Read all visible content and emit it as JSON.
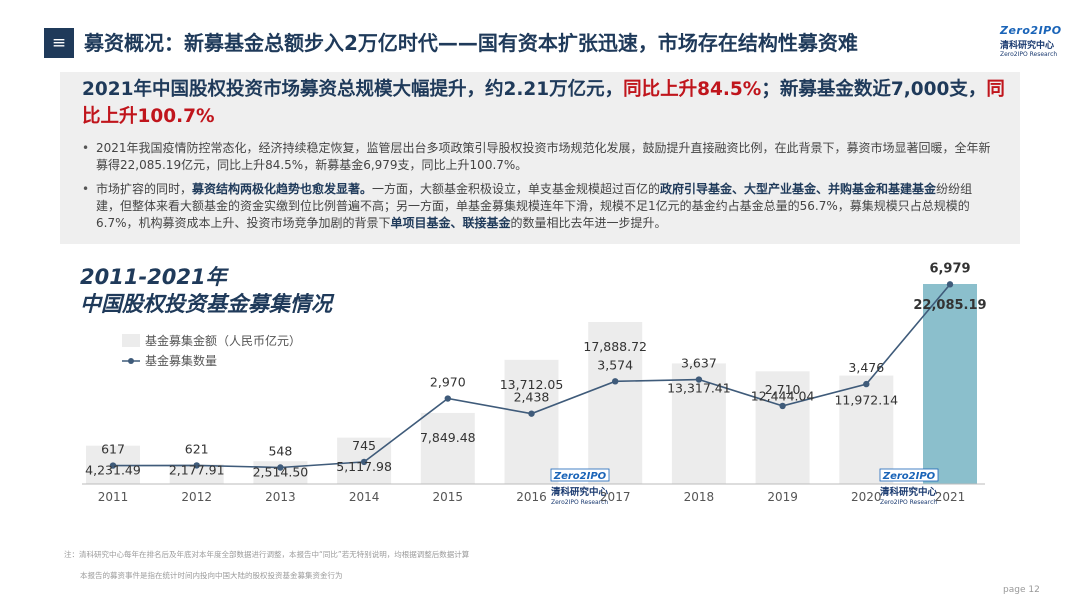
{
  "header": {
    "menu_icon": "≡",
    "title": "募资概况：新募基金总额步入2万亿时代——国有资本扩张迅速，市场存在结构性募资难"
  },
  "logo": {
    "top": "Zero2IPO",
    "mid": "清科研究中心",
    "bot": "Zero2IPO Research"
  },
  "headline": {
    "part1": "2021年中国股权投资市场募资总规模大幅提升，约2.21万亿元，",
    "red1": "同比上升84.5%",
    "part2": "；新募基金数近7,000支，",
    "red2": "同比上升100.7%"
  },
  "bullets": {
    "b1": "2021年我国疫情防控常态化，经济持续稳定恢复，监管层出台多项政策引导股权投资市场规范化发展，鼓励提升直接融资比例，在此背景下，募资市场显著回暖，全年新募得22,085.19亿元，同比上升84.5%，新募基金6,979支，同比上升100.7%。",
    "b2_1": "市场扩容的同时，",
    "b2_hl1": "募资结构两极化趋势也愈发显著。",
    "b2_2": "一方面，大额基金积极设立，单支基金规模超过百亿的",
    "b2_hl2": "政府引导基金、大型产业基金、并购基金和基建基金",
    "b2_3": "纷纷组建，但整体来看大额基金的资金实缴到位比例普遍不高；另一方面，单基金募集规模连年下滑，规模不足1亿元的基金约占基金总量的56.7%，募集规模只占总规模的6.7%，机构募资成本上升、投资市场竞争加剧的背景下",
    "b2_hl3": "单项目基金、联接基金",
    "b2_4": "的数量相比去年进一步提升。"
  },
  "chart_title": {
    "line1": "2011-2021年",
    "line2": "中国股权投资基金募集情况"
  },
  "chart_data": {
    "type": "bar",
    "categories": [
      "2011",
      "2012",
      "2013",
      "2014",
      "2015",
      "2016",
      "2017",
      "2018",
      "2019",
      "2020",
      "2021"
    ],
    "series": [
      {
        "name": "基金募集金额（人民币亿元）",
        "type": "bar",
        "values": [
          4231.49,
          2177.91,
          2514.5,
          5117.98,
          7849.48,
          13712.05,
          17888.72,
          13317.41,
          12444.04,
          11972.14,
          22085.19
        ],
        "labels": [
          "4,231.49",
          "2,177.91",
          "2,514.50",
          "5,117.98",
          "7,849.48",
          "13,712.05",
          "17,888.72",
          "13,317.41",
          "12,444.04",
          "11,972.14",
          "22,085.19"
        ]
      },
      {
        "name": "基金募集数量",
        "type": "line",
        "values": [
          617,
          621,
          548,
          745,
          2970,
          2438,
          3574,
          3637,
          2710,
          3476,
          6979
        ],
        "labels": [
          "617",
          "621",
          "548",
          "745",
          "2,970",
          "2,438",
          "3,574",
          "3,637",
          "2,710",
          "3,476",
          "6,979"
        ]
      }
    ],
    "colors": {
      "bar": "#ececec",
      "bar_highlight": "#8bbfcc",
      "line": "#3f5b7a"
    },
    "legend": "top-left",
    "grid": false
  },
  "watermark": {
    "top": "Zero2IPO",
    "mid": "清科研究中心",
    "bot": "Zero2IPO Research"
  },
  "footnotes": [
    "注：清科研究中心每年在排名后及年底对本年度全部数据进行调整，本报告中“同比”若无特别说明，均根据调整后数据计算",
    "本报告的募资事件是指在统计时间内投向中国大陆的股权投资基金募集资金行为"
  ],
  "page": "page  12"
}
